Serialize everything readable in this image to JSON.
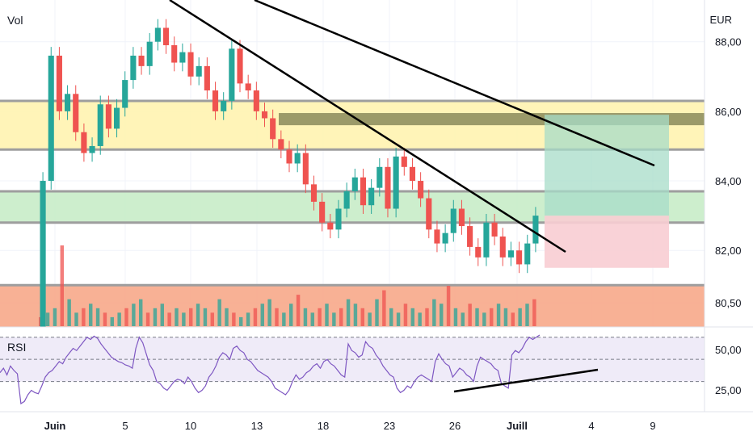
{
  "chart_data": {
    "type": "candlestick",
    "main_pane": {
      "label": "Vol",
      "currency": "EUR",
      "y_ticks": [
        "88,00",
        "86,00",
        "84,00",
        "82,00",
        "80,50"
      ],
      "ylim": [
        79.8,
        89.2
      ],
      "x_ticks": [
        "Juin",
        "5",
        "10",
        "13",
        "18",
        "23",
        "26",
        "Juill",
        "4",
        "9"
      ],
      "candles": [
        [
          79.5,
          84.0
        ],
        [
          84.0,
          87.6
        ],
        [
          87.6,
          86.0
        ],
        [
          86.0,
          86.5
        ],
        [
          86.5,
          85.4
        ],
        [
          85.4,
          84.8
        ],
        [
          84.8,
          85.0
        ],
        [
          85.0,
          86.2
        ],
        [
          86.2,
          85.5
        ],
        [
          85.5,
          86.1
        ],
        [
          86.1,
          86.9
        ],
        [
          86.9,
          87.6
        ],
        [
          87.6,
          87.3
        ],
        [
          87.3,
          88.0
        ],
        [
          88.0,
          88.4
        ],
        [
          88.4,
          87.9
        ],
        [
          87.9,
          87.4
        ],
        [
          87.4,
          87.7
        ],
        [
          87.7,
          87.0
        ],
        [
          87.0,
          87.3
        ],
        [
          87.3,
          86.6
        ],
        [
          86.6,
          86.0
        ],
        [
          86.0,
          86.3
        ],
        [
          86.3,
          87.8
        ],
        [
          87.8,
          86.8
        ],
        [
          86.8,
          86.6
        ],
        [
          86.6,
          86.0
        ],
        [
          86.0,
          85.8
        ],
        [
          85.8,
          85.2
        ],
        [
          85.2,
          84.9
        ],
        [
          84.9,
          84.5
        ],
        [
          84.5,
          84.8
        ],
        [
          84.8,
          83.9
        ],
        [
          83.9,
          83.4
        ],
        [
          83.4,
          82.8
        ],
        [
          82.8,
          82.6
        ],
        [
          82.6,
          83.2
        ],
        [
          83.2,
          83.7
        ],
        [
          83.7,
          84.1
        ],
        [
          84.1,
          83.3
        ],
        [
          83.3,
          83.8
        ],
        [
          83.8,
          84.4
        ],
        [
          84.4,
          83.2
        ],
        [
          83.2,
          84.7
        ],
        [
          84.7,
          84.4
        ],
        [
          84.4,
          84.0
        ],
        [
          84.0,
          83.5
        ],
        [
          83.5,
          82.6
        ],
        [
          82.6,
          82.2
        ],
        [
          82.2,
          82.5
        ],
        [
          82.5,
          83.2
        ],
        [
          83.2,
          82.7
        ],
        [
          82.7,
          82.1
        ],
        [
          82.1,
          81.8
        ],
        [
          81.8,
          82.8
        ],
        [
          82.8,
          82.4
        ],
        [
          82.4,
          81.8
        ],
        [
          81.8,
          82.0
        ],
        [
          82.0,
          81.6
        ],
        [
          81.6,
          82.2
        ],
        [
          82.2,
          83.0
        ]
      ],
      "zones": [
        {
          "name": "resistance-zone",
          "from": 84.9,
          "to": 86.3,
          "color": "#fff3b0"
        },
        {
          "name": "support-zone",
          "from": 82.8,
          "to": 83.7,
          "color": "#c8ecc8"
        },
        {
          "name": "lower-zone",
          "from": 79.8,
          "to": 81.0,
          "color": "#f7a98a"
        }
      ],
      "position": {
        "entry": 83.0,
        "target": 85.9,
        "stop": 81.5,
        "reward_color": "#a7dcc8",
        "risk_color": "#f8cdd3"
      }
    },
    "rsi_pane": {
      "label": "RSI",
      "y_ticks": [
        "50,00",
        "25,00"
      ],
      "ylim": [
        10,
        72
      ],
      "band": [
        30,
        70
      ],
      "mid": 50,
      "color": "#7e57c2",
      "values": [
        38,
        42,
        36,
        44,
        40,
        37,
        10,
        12,
        18,
        22,
        20,
        19,
        26,
        34,
        38,
        40,
        44,
        48,
        46,
        52,
        56,
        60,
        58,
        62,
        66,
        70,
        68,
        71,
        69,
        64,
        60,
        56,
        52,
        50,
        48,
        47,
        45,
        44,
        42,
        60,
        70,
        65,
        55,
        45,
        40,
        30,
        28,
        24,
        22,
        26,
        30,
        32,
        31,
        28,
        34,
        30,
        24,
        20,
        22,
        26,
        34,
        38,
        44,
        52,
        56,
        54,
        50,
        60,
        62,
        58,
        56,
        50,
        48,
        44,
        40,
        38,
        36,
        34,
        30,
        24,
        22,
        20,
        18,
        22,
        30,
        36,
        32,
        34,
        38,
        40,
        44,
        46,
        42,
        48,
        50,
        46,
        44,
        40,
        36,
        34,
        64,
        58,
        56,
        52,
        54,
        66,
        62,
        60,
        54,
        50,
        44,
        40,
        36,
        34,
        24,
        20,
        22,
        26,
        24,
        30,
        34,
        36,
        34,
        32,
        30,
        48,
        55,
        50,
        46,
        44,
        34,
        38,
        42,
        40,
        36,
        34,
        30,
        44,
        52,
        50,
        48,
        46,
        42,
        40,
        28,
        26,
        24,
        54,
        58,
        56,
        60,
        66,
        70,
        68,
        70,
        72
      ]
    },
    "volume": {
      "values": [
        2,
        3,
        4,
        18,
        6,
        3,
        4,
        5,
        4,
        3,
        2,
        3,
        4,
        5,
        6,
        3,
        4,
        5,
        3,
        4,
        3,
        4,
        5,
        4,
        3,
        6,
        4,
        3,
        2,
        3,
        4,
        5,
        6,
        4,
        3,
        5,
        7,
        4,
        3,
        4,
        5,
        3,
        4,
        6,
        5,
        4,
        3,
        6,
        8,
        4,
        3,
        5,
        4,
        3,
        4,
        6,
        5,
        9,
        4,
        3,
        5,
        4,
        3,
        4,
        5,
        4,
        3,
        4,
        5,
        6
      ]
    }
  }
}
